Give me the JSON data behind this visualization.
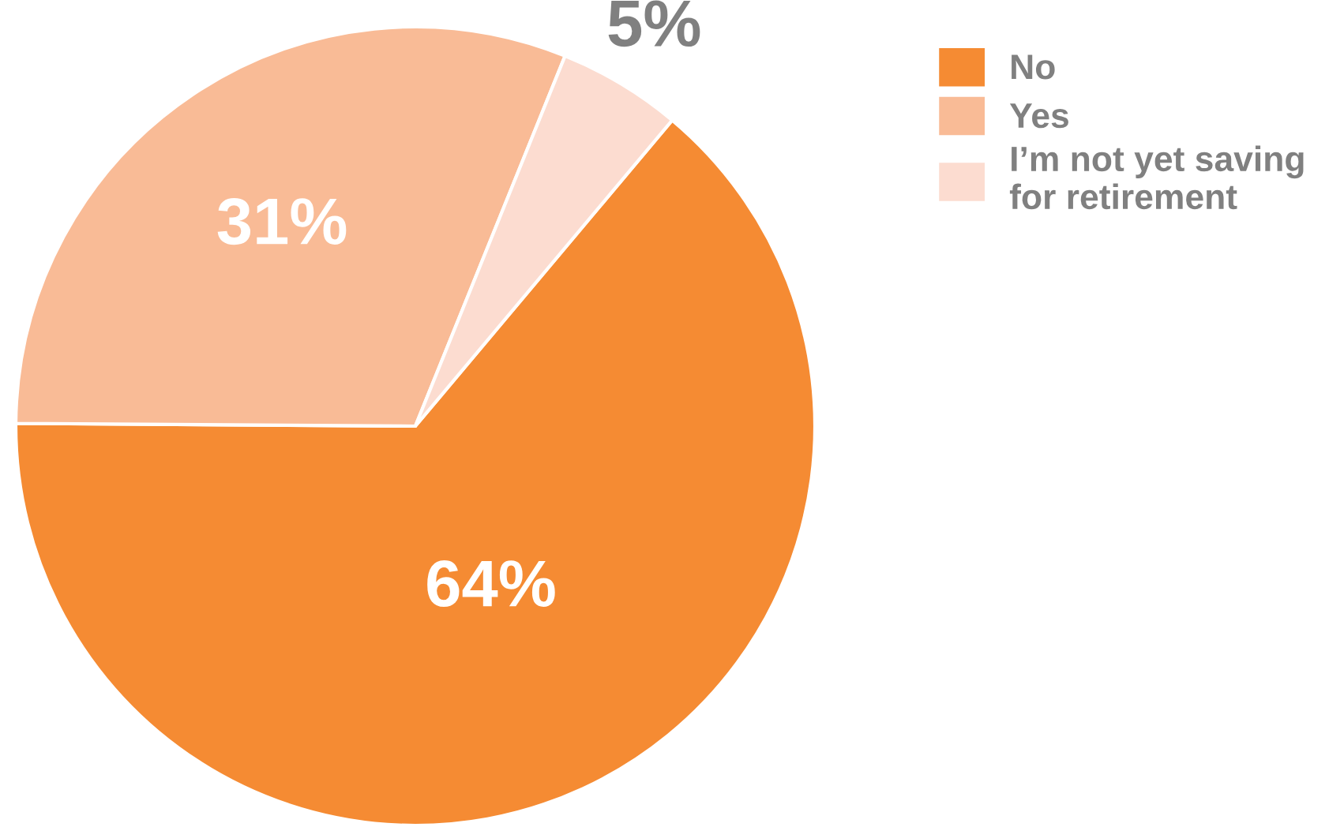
{
  "chart_data": {
    "type": "pie",
    "categories": [
      "No",
      "Yes",
      "I’m not yet saving\nfor retirement"
    ],
    "values": [
      64,
      31,
      5
    ],
    "colors": [
      "#f58b33",
      "#f9bb96",
      "#fcdcd0"
    ],
    "value_labels": [
      "64%",
      "31%",
      "5%"
    ],
    "legend": "top right"
  }
}
